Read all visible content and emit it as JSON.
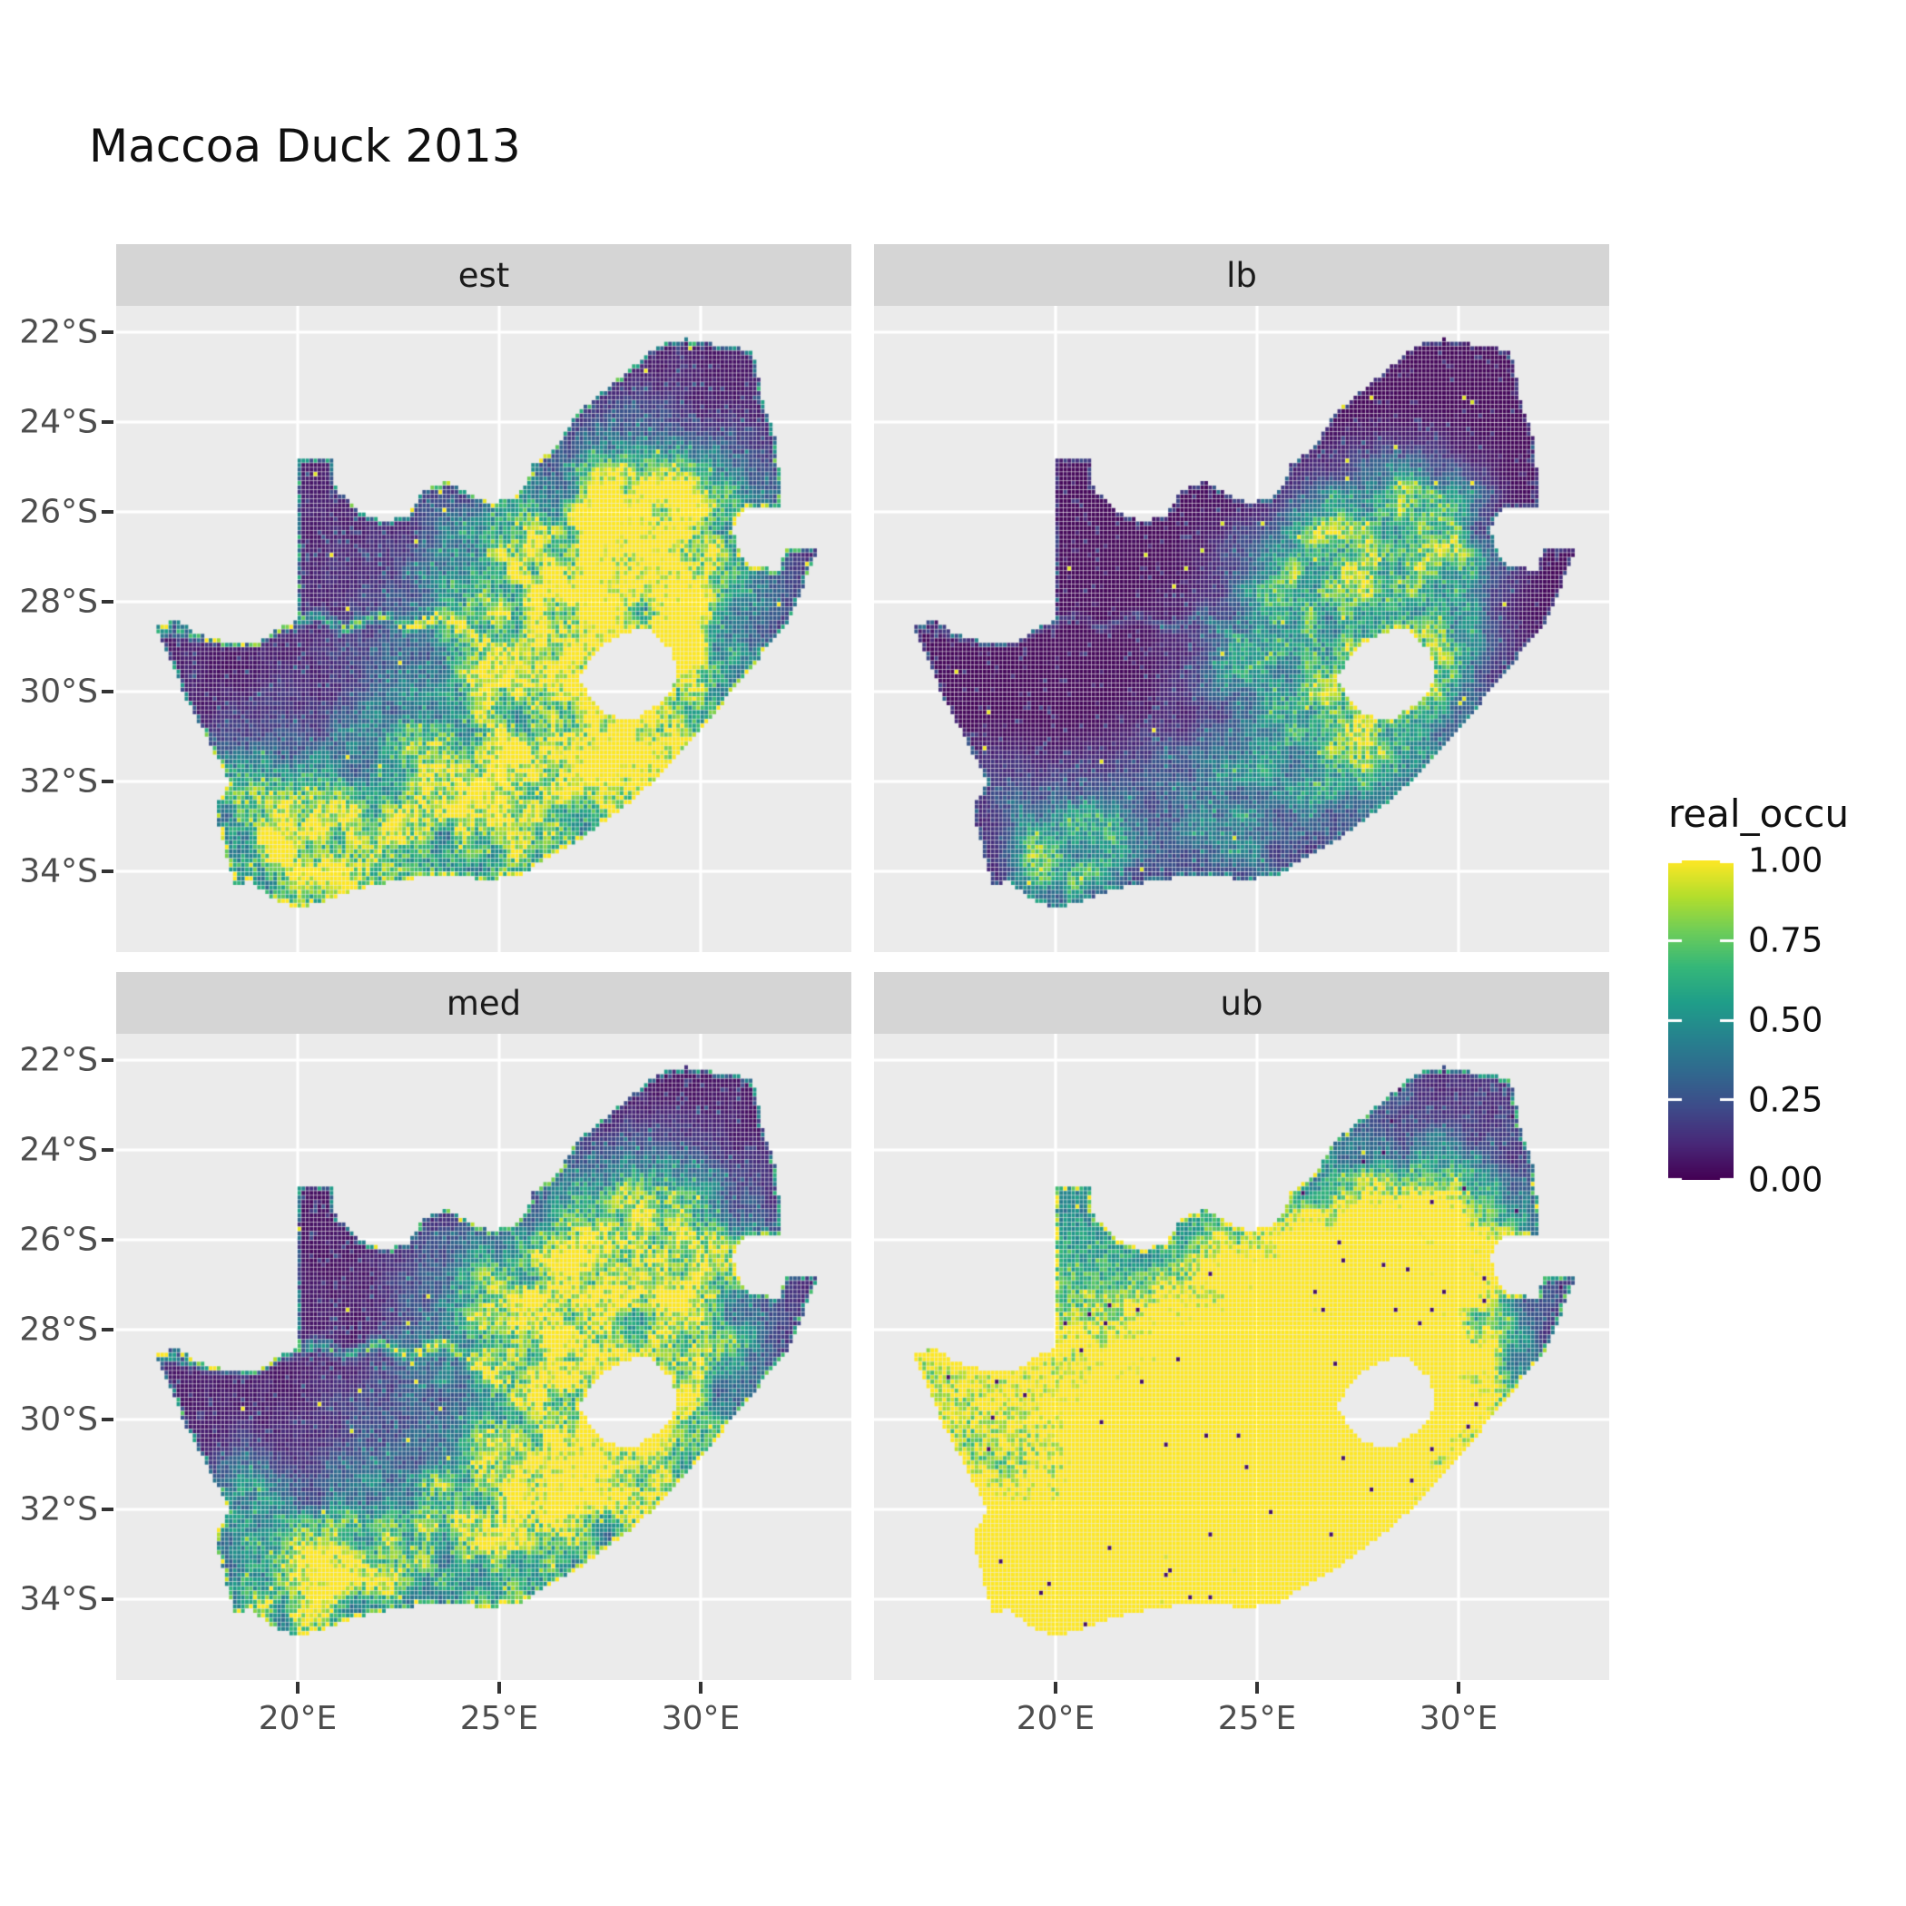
{
  "title": "Maccoa Duck 2013",
  "facets": [
    {
      "label": "est"
    },
    {
      "label": "lb"
    },
    {
      "label": "med"
    },
    {
      "label": "ub"
    }
  ],
  "axes": {
    "x": {
      "ticks": [
        {
          "label": "20°E",
          "value": 20
        },
        {
          "label": "25°E",
          "value": 25
        },
        {
          "label": "30°E",
          "value": 30
        }
      ]
    },
    "y": {
      "ticks": [
        {
          "label": "22°S",
          "value": -22
        },
        {
          "label": "24°S",
          "value": -24
        },
        {
          "label": "26°S",
          "value": -26
        },
        {
          "label": "28°S",
          "value": -28
        },
        {
          "label": "30°S",
          "value": -30
        },
        {
          "label": "32°S",
          "value": -32
        },
        {
          "label": "34°S",
          "value": -34
        }
      ]
    }
  },
  "legend": {
    "title": "real_occu",
    "ticks": [
      {
        "label": "1.00",
        "value": 1.0
      },
      {
        "label": "0.75",
        "value": 0.75
      },
      {
        "label": "0.50",
        "value": 0.5
      },
      {
        "label": "0.25",
        "value": 0.25
      },
      {
        "label": "0.00",
        "value": 0.0
      }
    ]
  },
  "colors": {
    "background": "#FFFFFF",
    "panel_bg": "#EBEBEB",
    "strip_bg": "#D5D5D5",
    "gridline": "#FFFFFF",
    "axis_text": "#4D4D4D",
    "tick_mark": "#333333",
    "text": "#1A1A1A",
    "viridis": [
      "#440154",
      "#482878",
      "#3E4A89",
      "#31688E",
      "#26828E",
      "#1F9E89",
      "#35B779",
      "#6DCD59",
      "#B4DE2C",
      "#FDE725"
    ]
  },
  "chart_data": {
    "type": "heatmap",
    "title": "Maccoa Duck 2013",
    "variable": "real_occu",
    "value_range": [
      0,
      1
    ],
    "region": "South Africa (Lesotho excluded as hole, Eswatini notch on east border)",
    "x_range_deg_east": [
      15.5,
      33.7
    ],
    "y_range_deg_south": [
      -21.4,
      -36.1
    ],
    "facet_layout": [
      [
        "est",
        "lb"
      ],
      [
        "med",
        "ub"
      ]
    ],
    "facets": [
      {
        "label": "est",
        "summary": "Point estimate of realised occupancy: high (0.6-1.0) over central Free State / Highveld, Gauteng and the south-western Cape; bright fringe on west coast and along the Orange River; near zero in Limpopo, Kalahari north-west and far north-east.",
        "render": {
          "seed": 11,
          "mult": 1.3,
          "pow": 1.0,
          "jit": 0.55,
          "river": 0.42,
          "edge": 0.3,
          "speckle": 1.0,
          "hi_out": 0.0035,
          "lo_out": 0,
          "sw": false
        }
      },
      {
        "label": "lb",
        "summary": "Lower bound: mostly near zero (dark purple); moderate (0.25-0.6) patch around Gauteng / eastern Highveld and NE of Lesotho; many scattered single-cell high outliers.",
        "render": {
          "seed": 23,
          "mult": 0.8,
          "pow": 1.9,
          "jit": 0.5,
          "river": 0.14,
          "edge": 0.12,
          "speckle": 0.9,
          "hi_out": 0.004,
          "lo_out": 0,
          "sw": false
        }
      },
      {
        "label": "med",
        "summary": "Median: spatial pattern close to est, slightly less saturated; same Highveld-Free State bright band, west-coast fringe and Orange River line.",
        "render": {
          "seed": 37,
          "mult": 1.22,
          "pow": 1.05,
          "jit": 0.55,
          "river": 0.4,
          "edge": 0.28,
          "speckle": 1.0,
          "hi_out": 0.002,
          "lo_out": 0,
          "sw": false
        }
      },
      {
        "label": "ub",
        "summary": "Upper bound: saturated near 1 (yellow) across most of the west, south and central interior; dark only in Limpopo / far north-east, north of the Orange River and a few western inland pockets.",
        "render": {
          "seed": 53,
          "mult": 1.75,
          "pow": 0.85,
          "jit": 0.45,
          "river": 0.6,
          "edge": 0.3,
          "speckle": 0.8,
          "hi_out": 0.001,
          "lo_out": 0.006,
          "sw": true
        }
      }
    ],
    "geometry": {
      "cell_size_deg": 0.1,
      "outline": [
        [
          16.45,
          -28.58
        ],
        [
          17.05,
          -28.4
        ],
        [
          17.45,
          -28.7
        ],
        [
          18.2,
          -28.9
        ],
        [
          19.0,
          -28.95
        ],
        [
          19.6,
          -28.55
        ],
        [
          19.99,
          -28.42
        ],
        [
          19.99,
          -24.78
        ],
        [
          20.9,
          -24.78
        ],
        [
          20.95,
          -25.5
        ],
        [
          21.55,
          -26.0
        ],
        [
          22.15,
          -26.2
        ],
        [
          22.75,
          -26.1
        ],
        [
          23.1,
          -25.55
        ],
        [
          23.7,
          -25.3
        ],
        [
          24.25,
          -25.6
        ],
        [
          24.85,
          -25.8
        ],
        [
          25.35,
          -25.7
        ],
        [
          25.65,
          -25.45
        ],
        [
          25.85,
          -24.95
        ],
        [
          26.45,
          -24.55
        ],
        [
          26.9,
          -23.85
        ],
        [
          27.55,
          -23.35
        ],
        [
          28.2,
          -22.85
        ],
        [
          28.95,
          -22.3
        ],
        [
          29.65,
          -22.15
        ],
        [
          30.45,
          -22.3
        ],
        [
          31.3,
          -22.4
        ],
        [
          31.55,
          -23.5
        ],
        [
          31.9,
          -24.5
        ],
        [
          32.0,
          -25.6
        ],
        [
          31.95,
          -25.95
        ],
        [
          31.1,
          -25.95
        ],
        [
          30.8,
          -26.35
        ],
        [
          30.9,
          -26.8
        ],
        [
          31.2,
          -27.2
        ],
        [
          31.95,
          -27.3
        ],
        [
          32.12,
          -26.85
        ],
        [
          32.89,
          -26.86
        ],
        [
          32.55,
          -27.7
        ],
        [
          32.15,
          -28.5
        ],
        [
          31.55,
          -29.15
        ],
        [
          30.7,
          -30.1
        ],
        [
          30.0,
          -30.9
        ],
        [
          29.2,
          -31.7
        ],
        [
          28.1,
          -32.6
        ],
        [
          27.0,
          -33.3
        ],
        [
          26.2,
          -33.7
        ],
        [
          25.65,
          -34.05
        ],
        [
          24.8,
          -34.2
        ],
        [
          23.7,
          -34.1
        ],
        [
          22.5,
          -34.2
        ],
        [
          21.3,
          -34.45
        ],
        [
          20.4,
          -34.75
        ],
        [
          19.9,
          -34.82
        ],
        [
          19.3,
          -34.6
        ],
        [
          18.85,
          -34.2
        ],
        [
          18.45,
          -34.35
        ],
        [
          18.3,
          -33.85
        ],
        [
          18.1,
          -33.2
        ],
        [
          17.95,
          -32.6
        ],
        [
          18.3,
          -32.0
        ],
        [
          17.85,
          -31.2
        ],
        [
          17.25,
          -30.2
        ],
        [
          16.85,
          -29.3
        ]
      ],
      "lesotho_hole": [
        [
          27.0,
          -29.7
        ],
        [
          27.4,
          -29.1
        ],
        [
          28.1,
          -28.7
        ],
        [
          28.7,
          -28.6
        ],
        [
          29.3,
          -29.1
        ],
        [
          29.45,
          -29.65
        ],
        [
          29.1,
          -30.2
        ],
        [
          28.4,
          -30.6
        ],
        [
          27.75,
          -30.55
        ],
        [
          27.3,
          -30.2
        ]
      ],
      "orange_river": [
        [
          16.5,
          -28.55
        ],
        [
          17.6,
          -28.78
        ],
        [
          18.7,
          -28.9
        ],
        [
          19.7,
          -28.55
        ],
        [
          20.5,
          -28.3
        ],
        [
          21.2,
          -28.6
        ],
        [
          22.0,
          -28.3
        ],
        [
          22.8,
          -28.6
        ],
        [
          23.6,
          -28.3
        ],
        [
          24.3,
          -28.7
        ],
        [
          24.9,
          -29.1
        ]
      ],
      "hotspots": [
        [
          26.9,
          -30.1,
          1.8,
          0.85
        ],
        [
          28.4,
          -26.35,
          1.25,
          0.8
        ],
        [
          29.6,
          -26.7,
          1.2,
          0.5
        ],
        [
          25.6,
          -27.8,
          1.6,
          0.4
        ],
        [
          27.4,
          -28.3,
          1.5,
          0.5
        ],
        [
          19.7,
          -33.7,
          0.9,
          0.6
        ],
        [
          18.4,
          -31.9,
          0.8,
          0.35
        ],
        [
          20.7,
          -33.6,
          1.1,
          0.5
        ],
        [
          23.4,
          -32.4,
          1.7,
          0.45
        ],
        [
          30.1,
          -29.4,
          1.0,
          0.35
        ],
        [
          28.8,
          -31.8,
          1.1,
          0.35
        ],
        [
          25.2,
          -33.6,
          1.3,
          0.3
        ]
      ],
      "ub_boost_blobs": [
        [
          19.3,
          -31.8,
          4.3,
          0.95
        ],
        [
          24.0,
          -33.0,
          3.0,
          0.55
        ]
      ],
      "ub_suppress_blobs": [
        [
          18.75,
          -31.25,
          0.95,
          -0.6
        ],
        [
          21.6,
          -32.4,
          1.3,
          -0.35
        ],
        [
          30.6,
          -28.6,
          1.5,
          -0.25
        ]
      ]
    }
  }
}
